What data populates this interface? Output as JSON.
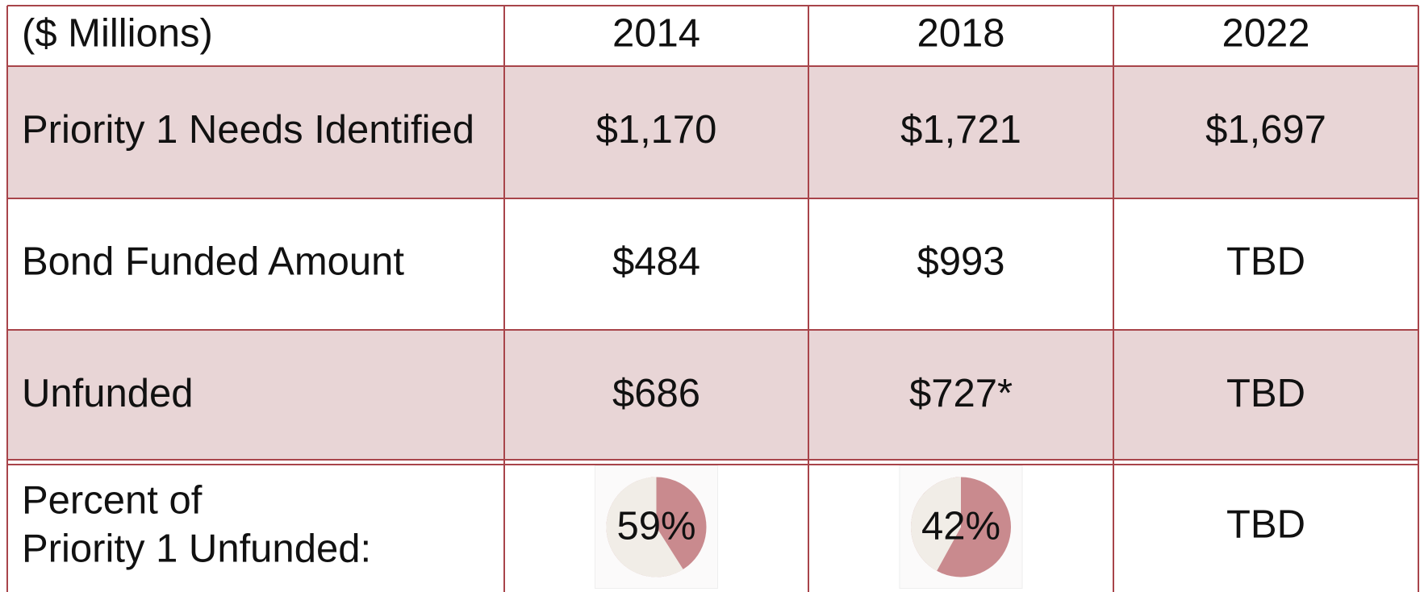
{
  "table": {
    "header": [
      "($ Millions)",
      "2014",
      "2018",
      "2022"
    ],
    "rows": [
      {
        "label": [
          "Priority 1 Needs Identified"
        ],
        "cells": [
          "$1,170",
          "$1,721",
          "$1,697"
        ]
      },
      {
        "label": [
          "Bond Funded Amount"
        ],
        "cells": [
          "$484",
          "$993",
          "TBD"
        ]
      },
      {
        "label": [
          "Unfunded"
        ],
        "cells": [
          "$686",
          "$727*",
          "TBD"
        ]
      },
      {
        "label": [
          "Percent of",
          "Priority 1 Unfunded:"
        ],
        "cells": [
          {
            "value": 59,
            "label": "59%"
          },
          {
            "value": 42,
            "label": "42%"
          },
          "TBD"
        ]
      }
    ]
  }
}
